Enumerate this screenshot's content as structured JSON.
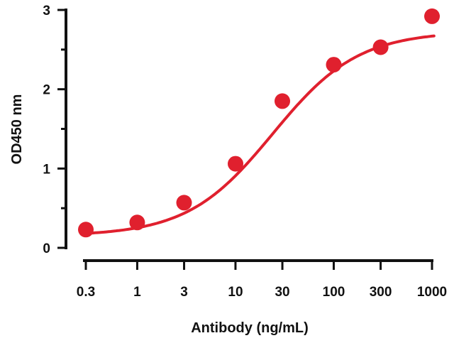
{
  "chart_data": {
    "type": "scatter",
    "title": "",
    "xlabel": "Antibody (ng/mL)",
    "ylabel": "OD450 nm",
    "x_scale": "log",
    "x_tick_labels": [
      "0.3",
      "1",
      "3",
      "10",
      "30",
      "100",
      "300",
      "1000"
    ],
    "y_tick_labels": [
      "0",
      "1",
      "2",
      "3"
    ],
    "ylim": [
      0,
      3
    ],
    "grid": false,
    "legend": "none",
    "series": [
      {
        "points": [
          {
            "x": 0.3,
            "y": 0.23
          },
          {
            "x": 1,
            "y": 0.32
          },
          {
            "x": 3,
            "y": 0.57
          },
          {
            "x": 10,
            "y": 1.06
          },
          {
            "x": 30,
            "y": 1.85
          },
          {
            "x": 100,
            "y": 2.31
          },
          {
            "x": 300,
            "y": 2.53
          },
          {
            "x": 1000,
            "y": 2.92
          }
        ],
        "fit_curve": {
          "type": "4PL",
          "bottom": 0.15,
          "top": 2.73,
          "ec50": 24,
          "hill": 1.0
        }
      }
    ],
    "colors": {
      "series": "#e0202e",
      "axis": "#111111"
    }
  }
}
